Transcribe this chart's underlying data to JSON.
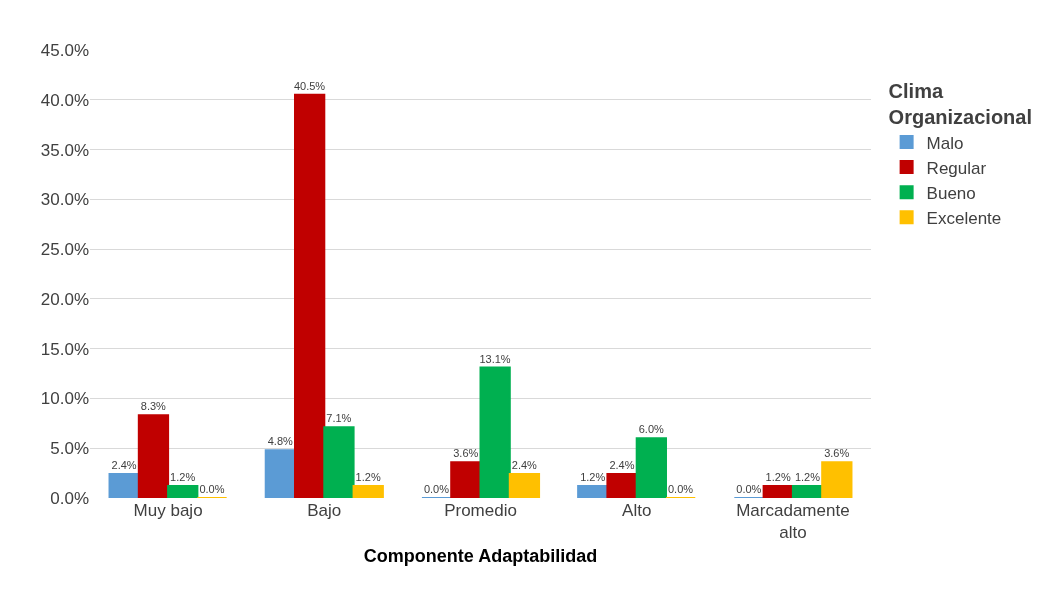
{
  "chart_data": {
    "type": "bar",
    "xlabel": "Componente Adaptabilidad",
    "legend_title": "Clima Organizacional",
    "legend": "right",
    "grid": "y",
    "categories": [
      "Muy bajo",
      "Bajo",
      "Promedio",
      "Alto",
      "Marcadamente alto"
    ],
    "ylim": [
      0,
      45
    ],
    "yticks": [
      {
        "value": 0,
        "label": "0.0%"
      },
      {
        "value": 5,
        "label": "5.0%"
      },
      {
        "value": 10,
        "label": "10.0%"
      },
      {
        "value": 15,
        "label": "15.0%"
      },
      {
        "value": 20,
        "label": "20.0%"
      },
      {
        "value": 25,
        "label": "25.0%"
      },
      {
        "value": 30,
        "label": "30.0%"
      },
      {
        "value": 35,
        "label": "35.0%"
      },
      {
        "value": 40,
        "label": "40.0%"
      },
      {
        "value": 45,
        "label": "45.0%"
      }
    ],
    "series": [
      {
        "name": "Malo",
        "color": "#5b9bd5",
        "values": [
          2.4,
          4.8,
          0.0,
          1.2,
          0.0
        ],
        "value_labels": [
          "2.4%",
          "4.8%",
          "0.0%",
          "1.2%",
          "0.0%"
        ]
      },
      {
        "name": "Regular",
        "color": "#c00000",
        "values": [
          8.3,
          40.5,
          3.6,
          2.4,
          1.2
        ],
        "value_labels": [
          "8.3%",
          "40.5%",
          "3.6%",
          "2.4%",
          "1.2%"
        ]
      },
      {
        "name": "Bueno",
        "color": "#00b050",
        "values": [
          1.2,
          7.1,
          13.1,
          6.0,
          1.2
        ],
        "value_labels": [
          "1.2%",
          "7.1%",
          "13.1%",
          "6.0%",
          "1.2%"
        ]
      },
      {
        "name": "Excelente",
        "color": "#ffc000",
        "values": [
          0.0,
          1.2,
          2.4,
          0.0,
          3.6
        ],
        "value_labels": [
          "0.0%",
          "1.2%",
          "2.4%",
          "0.0%",
          "3.6%"
        ]
      }
    ]
  }
}
